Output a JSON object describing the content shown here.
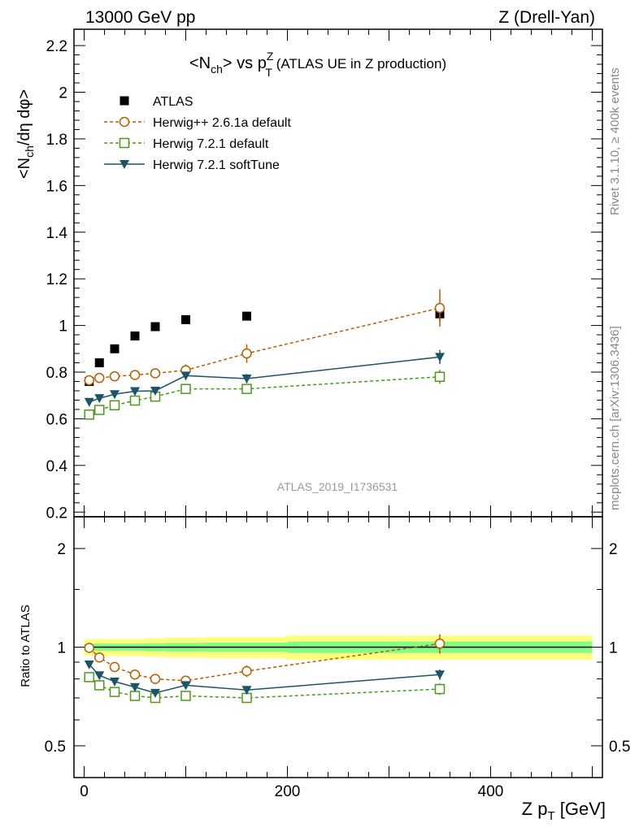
{
  "header": {
    "left_label": "13000 GeV pp",
    "right_label": "Z (Drell-Yan)"
  },
  "side_labels": {
    "rivet": "Rivet 3.1.10, ≥ 400k events",
    "mcplots": "mcplots.cern.ch [arXiv:1306.3436]"
  },
  "watermark": "ATLAS_2019_I1736531",
  "chart_data": [
    {
      "type": "scatter",
      "title_main": "<N",
      "title_sub1": "ch",
      "title_mid": "> vs p",
      "title_sup": "Z",
      "title_sub2": "T",
      "title_rest": " (ATLAS UE in Z production)",
      "ylabel": "<N_ch/dη dφ>",
      "ylim": [
        0.18,
        2.27
      ],
      "yticks": [
        0.2,
        0.4,
        0.6,
        0.8,
        1,
        1.2,
        1.4,
        1.6,
        1.8,
        2,
        2.2
      ],
      "ytick_labels": [
        "0.2",
        "0.4",
        "0.6",
        "0.8",
        "1",
        "1.2",
        "1.4",
        "1.6",
        "1.8",
        "2",
        "2.2"
      ],
      "xlim": [
        -10,
        510
      ],
      "grid": false,
      "legend_position": "top-left",
      "series": [
        {
          "name": "ATLAS",
          "color": "#000000",
          "marker": "filled-square",
          "line": "none",
          "x": [
            5,
            15,
            30,
            50,
            70,
            100,
            160,
            350
          ],
          "y": [
            0.76,
            0.84,
            0.9,
            0.955,
            0.995,
            1.025,
            1.04,
            1.05
          ],
          "err": [
            0.01,
            0.01,
            0.01,
            0.01,
            0.01,
            0.01,
            0.01,
            0.03
          ]
        },
        {
          "name": "Herwig++ 2.6.1a default",
          "color": "#b85c00",
          "marker": "open-circle",
          "line": "dashed",
          "x": [
            5,
            15,
            30,
            50,
            70,
            100,
            160,
            350
          ],
          "y": [
            0.765,
            0.775,
            0.782,
            0.788,
            0.795,
            0.808,
            0.88,
            1.075
          ],
          "err": [
            0.008,
            0.008,
            0.01,
            0.01,
            0.018,
            0.025,
            0.04,
            0.08
          ]
        },
        {
          "name": "Herwig 7.2.1 default",
          "color": "#4a9a18",
          "marker": "open-square",
          "line": "dashed",
          "x": [
            5,
            15,
            30,
            50,
            70,
            100,
            160,
            350
          ],
          "y": [
            0.618,
            0.638,
            0.658,
            0.678,
            0.695,
            0.728,
            0.728,
            0.78
          ],
          "err": [
            0.008,
            0.008,
            0.01,
            0.01,
            0.012,
            0.015,
            0.02,
            0.03
          ]
        },
        {
          "name": "Herwig 7.2.1 softTune",
          "color": "#1b5566",
          "marker": "filled-triangle-down",
          "line": "solid",
          "x": [
            5,
            15,
            30,
            50,
            70,
            100,
            160,
            350
          ],
          "y": [
            0.672,
            0.688,
            0.705,
            0.718,
            0.72,
            0.785,
            0.772,
            0.865
          ],
          "err": [
            0.008,
            0.008,
            0.01,
            0.01,
            0.012,
            0.015,
            0.02,
            0.03
          ]
        }
      ]
    },
    {
      "type": "scatter",
      "ylabel": "Ratio to ATLAS",
      "ylim": [
        0.4,
        2.5
      ],
      "log_y": true,
      "yticks": [
        0.5,
        1,
        2
      ],
      "ytick_labels": [
        "0.5",
        "1",
        "2"
      ],
      "xlim": [
        -10,
        510
      ],
      "xticks": [
        0,
        200,
        400
      ],
      "xtick_labels": [
        "0",
        "200",
        "400"
      ],
      "xlabel_main": "Z p",
      "xlabel_sub": "T",
      "xlabel_rest": " [GeV]",
      "reference_line": 1,
      "bands": {
        "edges": [
          0,
          10,
          20,
          40,
          60,
          80,
          120,
          200,
          500
        ],
        "yellow_half": [
          0.055,
          0.06,
          0.06,
          0.06,
          0.065,
          0.07,
          0.075,
          0.085
        ],
        "green_half": [
          0.022,
          0.025,
          0.025,
          0.025,
          0.028,
          0.03,
          0.032,
          0.04
        ],
        "yellow_color": "#ffff80",
        "green_color": "#80ff80"
      },
      "series": [
        {
          "name": "Herwig++ 2.6.1a default",
          "x": [
            5,
            15,
            30,
            50,
            70,
            100,
            160,
            350
          ],
          "y": [
            0.995,
            0.93,
            0.87,
            0.825,
            0.8,
            0.79,
            0.845,
            1.025
          ],
          "err": [
            0.01,
            0.01,
            0.012,
            0.012,
            0.015,
            0.02,
            0.035,
            0.07
          ]
        },
        {
          "name": "Herwig 7.2.1 default",
          "x": [
            5,
            15,
            30,
            50,
            70,
            100,
            160,
            350
          ],
          "y": [
            0.81,
            0.765,
            0.73,
            0.71,
            0.7,
            0.71,
            0.7,
            0.745
          ],
          "err": [
            0.008,
            0.008,
            0.01,
            0.01,
            0.012,
            0.015,
            0.02,
            0.03
          ]
        },
        {
          "name": "Herwig 7.2.1 softTune",
          "x": [
            5,
            15,
            30,
            50,
            70,
            100,
            160,
            350
          ],
          "y": [
            0.885,
            0.82,
            0.785,
            0.755,
            0.725,
            0.765,
            0.74,
            0.825
          ],
          "err": [
            0.008,
            0.008,
            0.01,
            0.01,
            0.012,
            0.015,
            0.02,
            0.03
          ]
        }
      ]
    }
  ]
}
